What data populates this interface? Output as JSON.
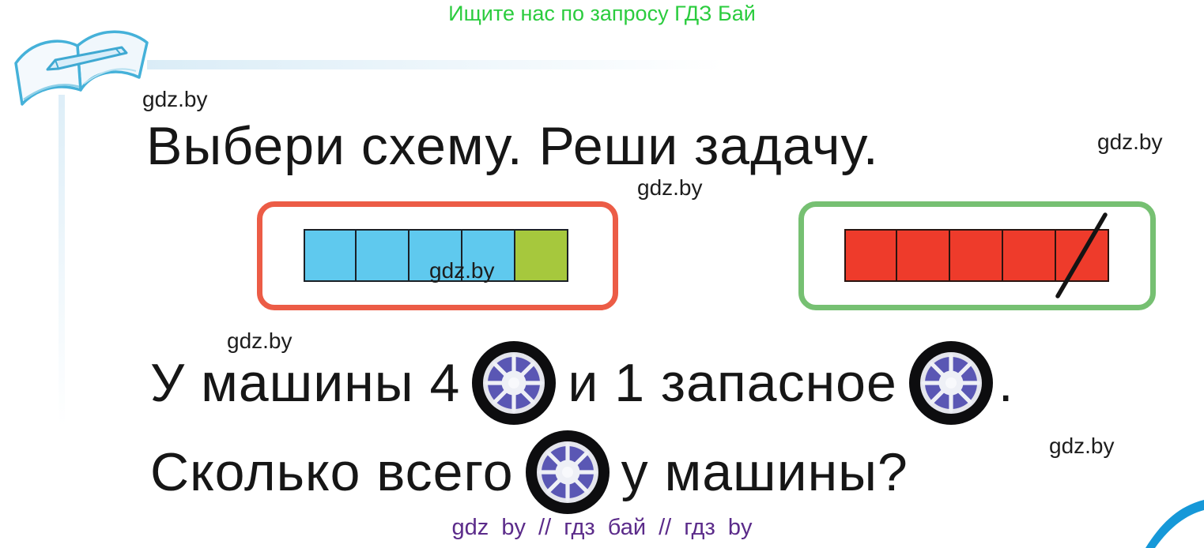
{
  "header": {
    "promo_text": "Ищите нас по запросу ГДЗ Бай"
  },
  "watermark": {
    "label": "gdz.by"
  },
  "task": {
    "title": "Выбери схему. Реши задачу.",
    "sentence1": {
      "before_first_icon": "У машины 4",
      "between_icons": "и 1 запасное",
      "after_last_icon": "."
    },
    "sentence2": {
      "before_icon": "Сколько всего",
      "after_icon": "у машины?"
    }
  },
  "schemes": {
    "left": {
      "border_color": "#ec5c46",
      "squares": [
        "blue",
        "blue",
        "blue",
        "blue",
        "green"
      ]
    },
    "right": {
      "border_color": "#76c072",
      "squares": [
        "red",
        "red",
        "red",
        "red",
        "red"
      ],
      "crossed_out_last": true
    }
  },
  "footer": {
    "site_tags": "gdz by  //  гдз бай  //  гдз by"
  },
  "colors": {
    "header_green": "#2bcc3e",
    "footer_purple": "#5b2b8a",
    "dash_purple": "#7747a2",
    "square_blue": "#5fc9ee",
    "square_green": "#a6c83d",
    "square_red": "#ee3b2b",
    "wheel_spoke_purple": "#5a57b4",
    "swoosh_blue": "#1698d8"
  },
  "icons": {
    "book": "open-book-with-pen",
    "wheel": "car-wheel",
    "slash": "cross-out-stroke"
  }
}
